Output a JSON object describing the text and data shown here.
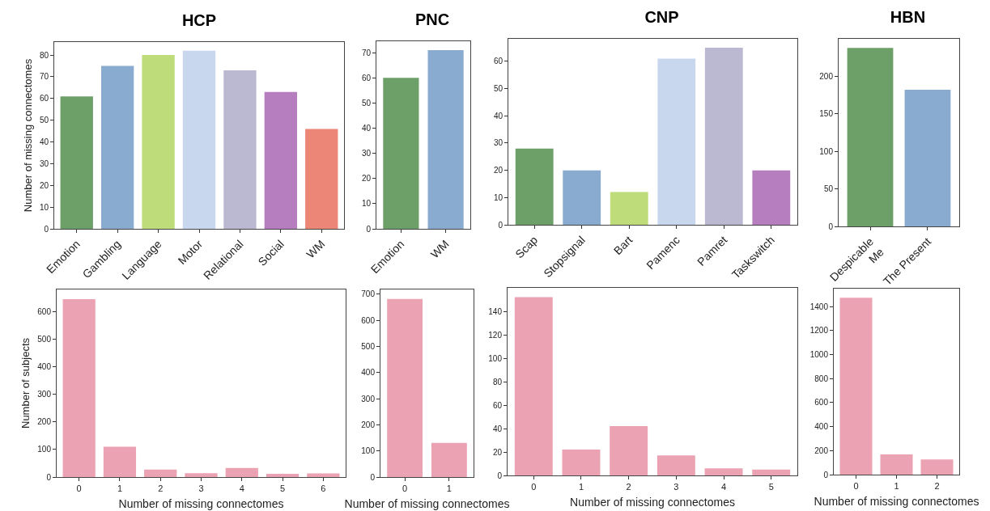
{
  "chart_data": [
    {
      "type": "bar",
      "title": "HCP",
      "ylabel": "Number of missing connectomes",
      "categories": [
        "Emotion",
        "Gambling",
        "Language",
        "Motor",
        "Relational",
        "Social",
        "WM"
      ],
      "values": [
        61,
        75,
        80,
        82,
        73,
        63,
        46
      ],
      "colors": [
        "#6d9f68",
        "#88abcf",
        "#bedc7a",
        "#c8d7ee",
        "#bbb8d2",
        "#b67ebf",
        "#ec8677"
      ],
      "ylim": [
        0,
        86
      ],
      "yticks": [
        0,
        10,
        20,
        30,
        40,
        50,
        60,
        70,
        80
      ],
      "grid": false
    },
    {
      "type": "bar",
      "title": "PNC",
      "categories": [
        "Emotion",
        "WM"
      ],
      "values": [
        60,
        71
      ],
      "colors": [
        "#6d9f68",
        "#88abcf"
      ],
      "ylim": [
        0,
        74.5
      ],
      "yticks": [
        0,
        10,
        20,
        30,
        40,
        50,
        60,
        70
      ],
      "grid": false
    },
    {
      "type": "bar",
      "title": "CNP",
      "categories": [
        "Scap",
        "Stopsignal",
        "Bart",
        "Pamenc",
        "Pamret",
        "Taskswitch"
      ],
      "values": [
        28,
        20,
        12,
        61,
        65,
        20
      ],
      "colors": [
        "#6d9f68",
        "#88abcf",
        "#bedc7a",
        "#c8d7ee",
        "#bbb8d2",
        "#b67ebf"
      ],
      "ylim": [
        0,
        68.3
      ],
      "yticks": [
        0,
        10,
        20,
        30,
        40,
        50,
        60
      ],
      "grid": false
    },
    {
      "type": "bar",
      "title": "HBN",
      "categories": [
        "Despicable Me",
        "The Present"
      ],
      "values": [
        238,
        182
      ],
      "colors": [
        "#6d9f68",
        "#88abcf"
      ],
      "ylim": [
        0,
        250
      ],
      "yticks": [
        0,
        50,
        100,
        150,
        200
      ],
      "grid": false
    },
    {
      "type": "bar",
      "xlabel": "Number of missing connectomes",
      "ylabel": "Number of subjects",
      "categories": [
        "0",
        "1",
        "2",
        "3",
        "4",
        "5",
        "6"
      ],
      "values": [
        645,
        110,
        27,
        14,
        33,
        12,
        13
      ],
      "color": "#eba2b2",
      "ylim": [
        0,
        680
      ],
      "yticks": [
        0,
        100,
        200,
        300,
        400,
        500,
        600
      ],
      "grid": false
    },
    {
      "type": "bar",
      "xlabel": "Number of missing connectomes",
      "categories": [
        "0",
        "1"
      ],
      "values": [
        682,
        131
      ],
      "color": "#eba2b2",
      "ylim": [
        0,
        718
      ],
      "yticks": [
        0,
        100,
        200,
        300,
        400,
        500,
        600,
        700
      ],
      "grid": false
    },
    {
      "type": "bar",
      "xlabel": "Number of missing connectomes",
      "categories": [
        "0",
        "1",
        "2",
        "3",
        "4",
        "5"
      ],
      "values": [
        152,
        22,
        42,
        17,
        6,
        5
      ],
      "color": "#eba2b2",
      "ylim": [
        0,
        160
      ],
      "yticks": [
        0,
        20,
        40,
        60,
        80,
        100,
        120,
        140
      ],
      "grid": false
    },
    {
      "type": "bar",
      "xlabel": "Number of missing connectomes",
      "categories": [
        "0",
        "1",
        "2"
      ],
      "values": [
        1475,
        168,
        126
      ],
      "color": "#eba2b2",
      "ylim": [
        0,
        1550
      ],
      "yticks": [
        0,
        200,
        400,
        600,
        800,
        1000,
        1200,
        1400
      ],
      "grid": false
    }
  ]
}
